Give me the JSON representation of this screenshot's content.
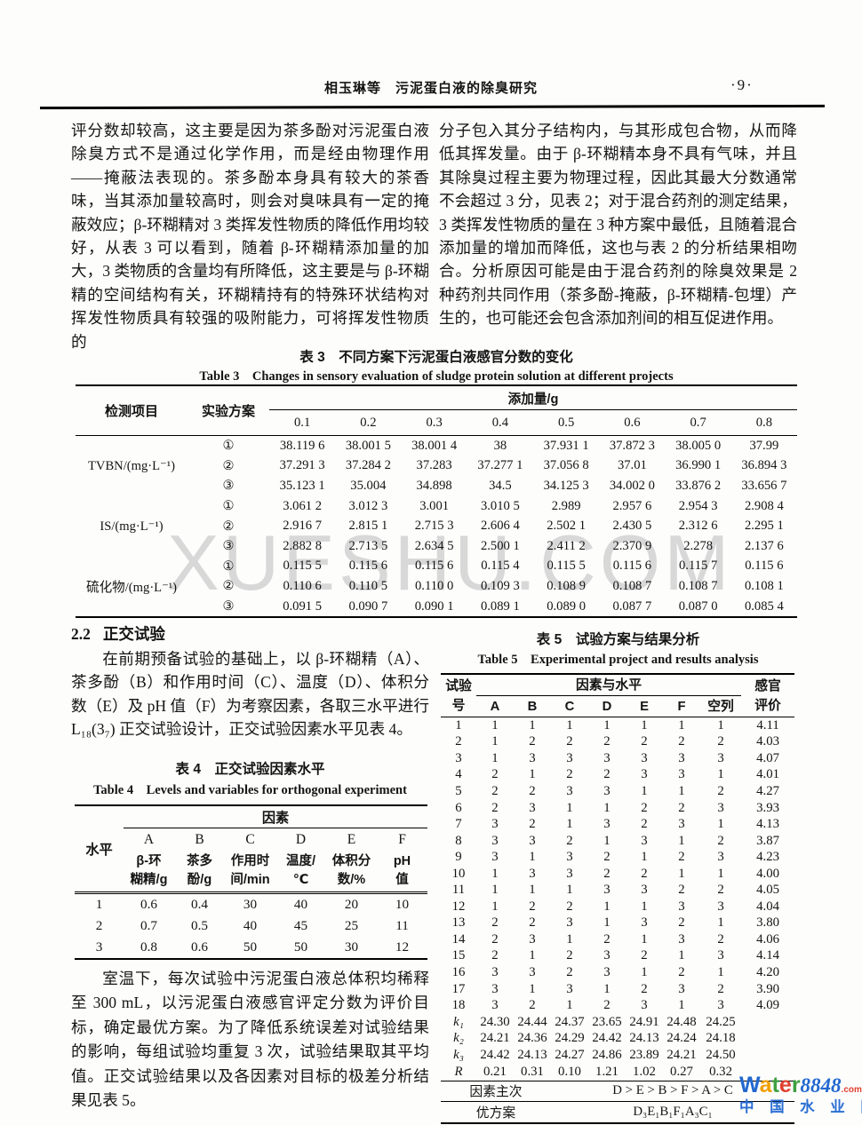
{
  "header": {
    "running_title": "相玉琳等　污泥蛋白液的除臭研究",
    "page_number": "·9·"
  },
  "body": {
    "left_column_paragraph": "评分数却较高，这主要是因为茶多酚对污泥蛋白液除臭方式不是通过化学作用，而是经由物理作用——掩蔽法表现的。茶多酚本身具有较大的茶香味，当其添加量较高时，则会对臭味具有一定的掩蔽效应；β-环糊精对 3 类挥发性物质的降低作用均较好，从表 3 可以看到，随着 β-环糊精添加量的加大，3 类物质的含量均有所降低，这主要是与 β-环糊精的空间结构有关，环糊精持有的特殊环状结构对挥发性物质具有较强的吸附能力，可将挥发性物质的",
    "right_column_paragraph": "分子包入其分子结构内，与其形成包合物，从而降低其挥发量。由于 β-环糊精本身不具有气味，并且其除臭过程主要为物理过程，因此其最大分数通常不会超过 3 分，见表 2；对于混合药剂的测定结果，3 类挥发性物质的量在 3 种方案中最低，且随着混合添加量的增加而降低，这也与表 2 的分析结果相吻合。分析原因可能是由于混合药剂的除臭效果是 2 种药剂共同作用（茶多酚-掩蔽，β-环糊精-包埋）产生的，也可能还会包含添加剂间的相互促进作用。",
    "section": {
      "number": "2.2",
      "title": "正交试验",
      "paragraph": "在前期预备试验的基础上，以 β-环糊精（A）、茶多酚（B）和作用时间（C）、温度（D）、体积分数（E）及 pH 值（F）为考察因素，各取三水平进行 L₁₈(3₇) 正交试验设计，正交试验因素水平见表 4。"
    },
    "bottom_left_paragraph": "室温下，每次试验中污泥蛋白液总体积均稀释至 300 mL，以污泥蛋白液感官评定分数为评价目标，确定最优方案。为了降低系统误差对试验结果的影响，每组试验均重复 3 次，试验结果取其平均值。正交试验结果以及各因素对目标的极差分析结果见表 5。"
  },
  "table3": {
    "caption_zh": "表 3　不同方案下污泥蛋白液感官分数的变化",
    "caption_en": "Table 3　Changes in sensory evaluation of sludge protein solution at different projects",
    "header": {
      "item": "检测项目",
      "scheme": "实验方案",
      "dosage": "添加量/g",
      "dosages": [
        "0.1",
        "0.2",
        "0.3",
        "0.4",
        "0.5",
        "0.6",
        "0.7",
        "0.8"
      ]
    },
    "groups": [
      {
        "label": "TVBN/(mg·L⁻¹)",
        "rows": [
          {
            "scheme": "①",
            "values": [
              "38.119 6",
              "38.001 5",
              "38.001 4",
              "38",
              "37.931 1",
              "37.872 3",
              "38.005 0",
              "37.99"
            ]
          },
          {
            "scheme": "②",
            "values": [
              "37.291 3",
              "37.284 2",
              "37.283",
              "37.277 1",
              "37.056 8",
              "37.01",
              "36.990 1",
              "36.894 3"
            ]
          },
          {
            "scheme": "③",
            "values": [
              "35.123 1",
              "35.004",
              "34.898",
              "34.5",
              "34.125 3",
              "34.002 0",
              "33.876 2",
              "33.656 7"
            ]
          }
        ]
      },
      {
        "label": "IS/(mg·L⁻¹)",
        "rows": [
          {
            "scheme": "①",
            "values": [
              "3.061 2",
              "3.012 3",
              "3.001",
              "3.010 5",
              "2.989",
              "2.957 6",
              "2.954 3",
              "2.908 4"
            ]
          },
          {
            "scheme": "②",
            "values": [
              "2.916 7",
              "2.815 1",
              "2.715 3",
              "2.606 4",
              "2.502 1",
              "2.430 5",
              "2.312 6",
              "2.295 1"
            ]
          },
          {
            "scheme": "③",
            "values": [
              "2.882 8",
              "2.713 5",
              "2.634 5",
              "2.500 1",
              "2.411 2",
              "2.370 9",
              "2.278",
              "2.137 6"
            ]
          }
        ]
      },
      {
        "label": "硫化物/(mg·L⁻¹)",
        "rows": [
          {
            "scheme": "①",
            "values": [
              "0.115 5",
              "0.115 6",
              "0.115 6",
              "0.115 4",
              "0.115 5",
              "0.115 6",
              "0.115 7",
              "0.115 6"
            ]
          },
          {
            "scheme": "②",
            "values": [
              "0.110 6",
              "0.110 5",
              "0.110 0",
              "0.109 3",
              "0.108 9",
              "0.108 7",
              "0.108 7",
              "0.108 1"
            ]
          },
          {
            "scheme": "③",
            "values": [
              "0.091 5",
              "0.090 7",
              "0.090 1",
              "0.089 1",
              "0.089 0",
              "0.087 7",
              "0.087 0",
              "0.085 4"
            ]
          }
        ]
      }
    ]
  },
  "table4": {
    "caption_zh": "表 4　正交试验因素水平",
    "caption_en": "Table 4　Levels and variables for orthogonal experiment",
    "header": {
      "level": "水平",
      "factor": "因素",
      "letters": [
        "A",
        "B",
        "C",
        "D",
        "E",
        "F"
      ],
      "sublabels": [
        "β-环\n糊精/g",
        "茶多\n酚/g",
        "作用时\n间/min",
        "温度/\n℃",
        "体积分\n数/%",
        "pH\n值"
      ]
    },
    "rows": [
      [
        "1",
        "0.6",
        "0.4",
        "30",
        "40",
        "20",
        "10"
      ],
      [
        "2",
        "0.7",
        "0.5",
        "40",
        "45",
        "25",
        "11"
      ],
      [
        "3",
        "0.8",
        "0.6",
        "50",
        "50",
        "30",
        "12"
      ]
    ]
  },
  "table5": {
    "caption_zh": "表 5　试验方案与结果分析",
    "caption_en": "Table 5　Experimental project and results analysis",
    "header": {
      "run": "试验\n号",
      "factors": "因素与水平",
      "letters": [
        "A",
        "B",
        "C",
        "D",
        "E",
        "F",
        "空列"
      ],
      "score": "感官\n评价"
    },
    "rows": [
      [
        "1",
        "1",
        "1",
        "1",
        "1",
        "1",
        "1",
        "1",
        "4.11"
      ],
      [
        "2",
        "1",
        "2",
        "2",
        "2",
        "2",
        "2",
        "2",
        "4.03"
      ],
      [
        "3",
        "1",
        "3",
        "3",
        "3",
        "3",
        "3",
        "3",
        "4.07"
      ],
      [
        "4",
        "2",
        "1",
        "2",
        "2",
        "3",
        "3",
        "1",
        "4.01"
      ],
      [
        "5",
        "2",
        "2",
        "3",
        "3",
        "1",
        "1",
        "2",
        "4.27"
      ],
      [
        "6",
        "2",
        "3",
        "1",
        "1",
        "2",
        "2",
        "3",
        "3.93"
      ],
      [
        "7",
        "3",
        "2",
        "1",
        "3",
        "2",
        "3",
        "1",
        "4.13"
      ],
      [
        "8",
        "3",
        "3",
        "2",
        "1",
        "3",
        "1",
        "2",
        "3.87"
      ],
      [
        "9",
        "3",
        "1",
        "3",
        "2",
        "1",
        "2",
        "3",
        "4.23"
      ],
      [
        "10",
        "1",
        "3",
        "3",
        "2",
        "2",
        "1",
        "1",
        "4.00"
      ],
      [
        "11",
        "1",
        "1",
        "1",
        "3",
        "3",
        "2",
        "2",
        "4.05"
      ],
      [
        "12",
        "1",
        "2",
        "2",
        "1",
        "1",
        "3",
        "3",
        "4.04"
      ],
      [
        "13",
        "2",
        "2",
        "3",
        "1",
        "3",
        "2",
        "1",
        "3.80"
      ],
      [
        "14",
        "2",
        "3",
        "1",
        "2",
        "1",
        "3",
        "2",
        "4.06"
      ],
      [
        "15",
        "2",
        "1",
        "2",
        "3",
        "2",
        "1",
        "3",
        "4.14"
      ],
      [
        "16",
        "3",
        "3",
        "2",
        "3",
        "1",
        "2",
        "1",
        "4.20"
      ],
      [
        "17",
        "3",
        "1",
        "3",
        "1",
        "2",
        "3",
        "2",
        "3.90"
      ],
      [
        "18",
        "3",
        "2",
        "1",
        "2",
        "3",
        "1",
        "3",
        "4.09"
      ]
    ],
    "k_rows": [
      {
        "label": "k₁",
        "values": [
          "24.30",
          "24.44",
          "24.37",
          "23.65",
          "24.91",
          "24.48",
          "24.25"
        ]
      },
      {
        "label": "k₂",
        "values": [
          "24.21",
          "24.36",
          "24.29",
          "24.42",
          "24.13",
          "24.24",
          "24.18"
        ]
      },
      {
        "label": "k₃",
        "values": [
          "24.42",
          "24.13",
          "24.27",
          "24.86",
          "23.89",
          "24.21",
          "24.50"
        ]
      },
      {
        "label": "R",
        "values": [
          "0.21",
          "0.31",
          "0.10",
          "1.21",
          "1.02",
          "0.27",
          "0.32"
        ]
      }
    ],
    "footer": {
      "order_label": "因素主次",
      "order_value": "D > E > B > F > A > C",
      "optimum_label": "优方案",
      "optimum_value": "D₃E₁B₁F₁A₃C₁"
    }
  },
  "watermarks": {
    "center_text": "XUESHU.COM",
    "brand": {
      "word_letters": [
        "W",
        "a",
        "t",
        "e",
        "r"
      ],
      "letter_colors": [
        "#2268cf",
        "#f0a000",
        "#3fa03f",
        "#e04030",
        "#3fa03f"
      ],
      "number": "8848",
      "number_color": "#2268cf",
      "tld": ".com",
      "tld_color": "#e04030",
      "site_name": "中 国 水 业 网",
      "site_color": "#2b6fd4"
    }
  }
}
